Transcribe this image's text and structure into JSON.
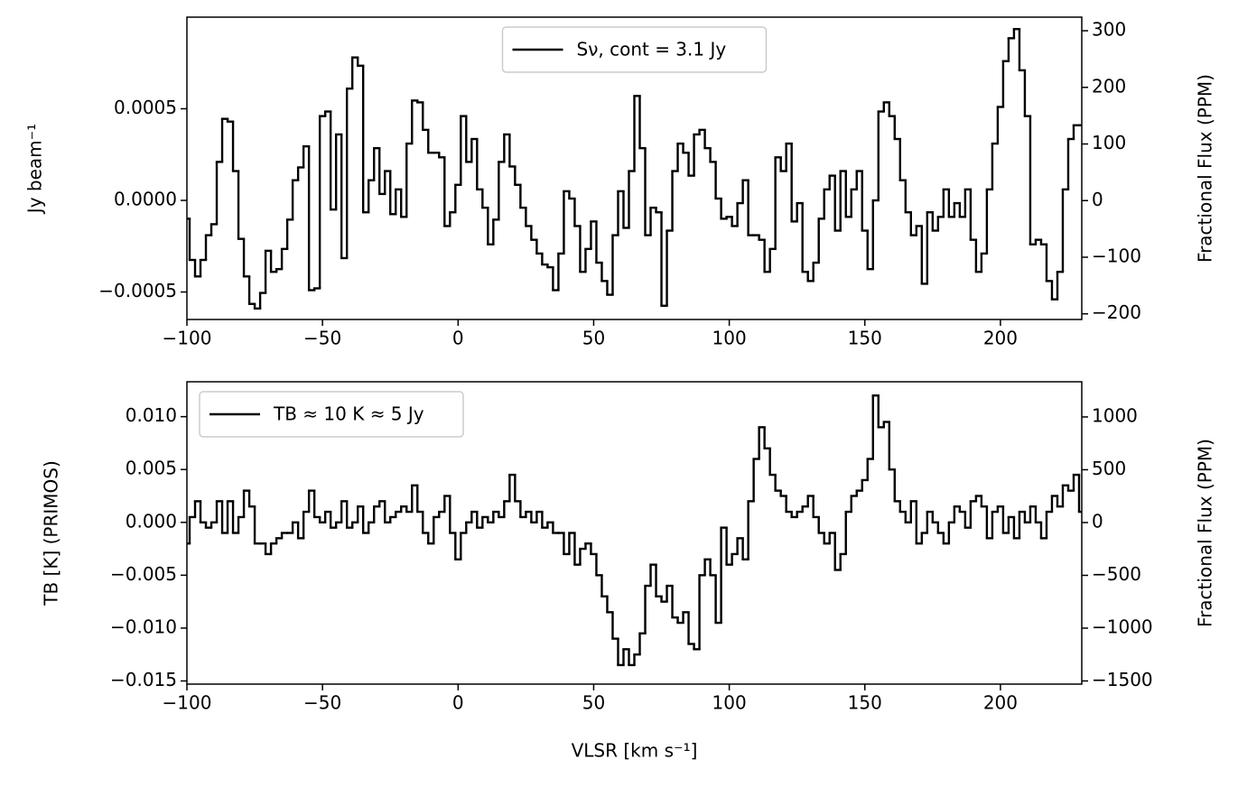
{
  "chart_data": [
    {
      "type": "line",
      "drawstyle": "steps-mid",
      "legend": "upper center",
      "ylabel": "Jy beam⁻¹",
      "y2label": "Fractional Flux (PPM)",
      "xlim": [
        -100,
        230
      ],
      "ylim": [
        -0.00065,
        0.001
      ],
      "y2lim": [
        -210,
        324
      ],
      "xticks": [
        {
          "value": -100,
          "label": "−100"
        },
        {
          "value": -50,
          "label": "−50"
        },
        0,
        50,
        100,
        150,
        200
      ],
      "yticks": [
        {
          "value": -0.0005,
          "label": "−0.0005"
        },
        {
          "value": 0,
          "label": "0.0000"
        },
        {
          "value": 0.0005,
          "label": "0.0005"
        }
      ],
      "y2ticks": [
        {
          "value": -200,
          "label": "−200"
        },
        {
          "value": -100,
          "label": "−100"
        },
        0,
        100,
        200,
        300
      ],
      "x": [
        -100,
        -98,
        -96,
        -94,
        -92,
        -90,
        -88,
        -86,
        -84,
        -82,
        -80,
        -78,
        -76,
        -74,
        -72,
        -70,
        -68,
        -66,
        -64,
        -62,
        -60,
        -58,
        -56,
        -54,
        -52,
        -50,
        -48,
        -46,
        -44,
        -42,
        -40,
        -38,
        -36,
        -34,
        -32,
        -30,
        -28,
        -26,
        -24,
        -22,
        -20,
        -18,
        -16,
        -14,
        -12,
        -10,
        -8,
        -6,
        -4,
        -2,
        0,
        2,
        4,
        6,
        8,
        10,
        12,
        14,
        16,
        18,
        20,
        22,
        24,
        26,
        28,
        30,
        32,
        34,
        36,
        38,
        40,
        42,
        44,
        46,
        48,
        50,
        52,
        54,
        56,
        58,
        60,
        62,
        64,
        66,
        68,
        70,
        72,
        74,
        76,
        78,
        80,
        82,
        84,
        86,
        88,
        90,
        92,
        94,
        96,
        98,
        100,
        102,
        104,
        106,
        108,
        110,
        112,
        114,
        116,
        118,
        120,
        122,
        124,
        126,
        128,
        130,
        132,
        134,
        136,
        138,
        140,
        142,
        144,
        146,
        148,
        150,
        152,
        154,
        156,
        158,
        160,
        162,
        164,
        166,
        168,
        170,
        172,
        174,
        176,
        178,
        180,
        182,
        184,
        186,
        188,
        190,
        192,
        194,
        196,
        198,
        200,
        202,
        204,
        206,
        208,
        210,
        212,
        214,
        216,
        218,
        220,
        222,
        224,
        226,
        228,
        230
      ],
      "series": [
        {
          "name": "Sν, cont = 3.1 Jy",
          "color": "#000000",
          "values": [
            -0.0001,
            -0.000325,
            -0.000415,
            -0.000325,
            -0.00019,
            -0.00013,
            0.00021,
            0.000445,
            0.00043,
            0.00016,
            -0.00021,
            -0.000415,
            -0.000565,
            -0.00059,
            -0.000505,
            -0.000275,
            -0.00039,
            -0.000375,
            -0.000265,
            -0.000105,
            0.00011,
            0.00018,
            0.000295,
            -0.00049,
            -0.00048,
            0.00046,
            0.000485,
            -5e-05,
            0.00036,
            -0.000315,
            0.00061,
            0.00078,
            0.000735,
            -6.5e-05,
            0.00011,
            0.000285,
            3.5e-05,
            0.00016,
            -7.5e-05,
            6e-05,
            -9e-05,
            0.00031,
            0.000545,
            0.000535,
            0.000385,
            0.00026,
            0.00026,
            0.000235,
            -0.00014,
            -6.5e-05,
            8.5e-05,
            0.00046,
            0.00021,
            0.000335,
            6e-05,
            -4e-05,
            -0.00024,
            -0.000105,
            0.00021,
            0.00036,
            0.000185,
            8.5e-05,
            -4e-05,
            -0.00014,
            -0.000215,
            -0.00029,
            -0.00035,
            -0.000365,
            -0.00049,
            -0.00029,
            5e-05,
            1e-05,
            -0.00014,
            -0.00039,
            -0.000265,
            -0.000115,
            -0.00034,
            -0.00044,
            -0.000515,
            -0.00019,
            5e-05,
            -0.00015,
            0.00016,
            0.00057,
            0.000285,
            -0.00019,
            -4e-05,
            -6.5e-05,
            -0.000575,
            -0.000165,
            0.00016,
            0.00031,
            0.00026,
            0.000135,
            0.00036,
            0.000385,
            0.000285,
            0.00021,
            1e-05,
            -0.0001,
            -9e-05,
            -0.00014,
            -1.5e-05,
            0.00011,
            -0.00019,
            -0.00019,
            -0.000215,
            -0.00039,
            -0.000265,
            0.000235,
            0.00016,
            0.00031,
            -0.000115,
            -1.5e-05,
            -0.00039,
            -0.00044,
            -0.00034,
            -0.0001,
            6e-05,
            0.000135,
            -0.000165,
            0.00016,
            -9e-05,
            6e-05,
            0.00016,
            -0.000165,
            -0.000375,
            0,
            0.000485,
            0.000535,
            0.00046,
            0.000335,
            0.00011,
            -6.5e-05,
            -0.00019,
            -0.00014,
            -0.000455,
            -6.5e-05,
            -0.000165,
            -9e-05,
            6e-05,
            -9e-05,
            -1.5e-05,
            -9e-05,
            6e-05,
            -0.000215,
            -0.00039,
            -0.00029,
            6e-05,
            0.00031,
            0.00051,
            0.00076,
            0.000885,
            0.000935,
            0.00071,
            0.00046,
            -0.00024,
            -0.000215,
            -0.00024,
            -0.00044,
            -0.00054,
            -0.00039,
            6e-05,
            0.000335,
            0.00041,
            0.00041
          ]
        }
      ]
    },
    {
      "type": "line",
      "drawstyle": "steps-mid",
      "legend": "upper left",
      "xlabel": "VLSR [km s⁻¹]",
      "ylabel": "TB [K] (PRIMOS)",
      "y2label": "Fractional Flux (PPM)",
      "xlim": [
        -100,
        230
      ],
      "ylim": [
        -0.0153,
        0.0133
      ],
      "y2lim": [
        -1530,
        1333
      ],
      "xticks": [
        {
          "value": -100,
          "label": "−100"
        },
        {
          "value": -50,
          "label": "−50"
        },
        0,
        50,
        100,
        150,
        200
      ],
      "yticks": [
        {
          "value": -0.015,
          "label": "−0.015"
        },
        {
          "value": -0.01,
          "label": "−0.010"
        },
        {
          "value": -0.005,
          "label": "−0.005"
        },
        {
          "value": 0,
          "label": "0.000"
        },
        {
          "value": 0.005,
          "label": "0.005"
        },
        {
          "value": 0.01,
          "label": "0.010"
        }
      ],
      "y2ticks": [
        {
          "value": -1500,
          "label": "−1500"
        },
        {
          "value": -1000,
          "label": "−1000"
        },
        {
          "value": -500,
          "label": "−500"
        },
        0,
        500,
        1000
      ],
      "x": [
        -100,
        -98,
        -96,
        -94,
        -92,
        -90,
        -88,
        -86,
        -84,
        -82,
        -80,
        -78,
        -76,
        -74,
        -72,
        -70,
        -68,
        -66,
        -64,
        -62,
        -60,
        -58,
        -56,
        -54,
        -52,
        -50,
        -48,
        -46,
        -44,
        -42,
        -40,
        -38,
        -36,
        -34,
        -32,
        -30,
        -28,
        -26,
        -24,
        -22,
        -20,
        -18,
        -16,
        -14,
        -12,
        -10,
        -8,
        -6,
        -4,
        -2,
        0,
        2,
        4,
        6,
        8,
        10,
        12,
        14,
        16,
        18,
        20,
        22,
        24,
        26,
        28,
        30,
        32,
        34,
        36,
        38,
        40,
        42,
        44,
        46,
        48,
        50,
        52,
        54,
        56,
        58,
        60,
        62,
        64,
        66,
        68,
        70,
        72,
        74,
        76,
        78,
        80,
        82,
        84,
        86,
        88,
        90,
        92,
        94,
        96,
        98,
        100,
        102,
        104,
        106,
        108,
        110,
        112,
        114,
        116,
        118,
        120,
        122,
        124,
        126,
        128,
        130,
        132,
        134,
        136,
        138,
        140,
        142,
        144,
        146,
        148,
        150,
        152,
        154,
        156,
        158,
        160,
        162,
        164,
        166,
        168,
        170,
        172,
        174,
        176,
        178,
        180,
        182,
        184,
        186,
        188,
        190,
        192,
        194,
        196,
        198,
        200,
        202,
        204,
        206,
        208,
        210,
        212,
        214,
        216,
        218,
        220,
        222,
        224,
        226,
        228,
        230
      ],
      "series": [
        {
          "name": "TB ≈ 10 K  ≈  5 Jy",
          "color": "#000000",
          "values": [
            -0.002,
            0.0005,
            0.002,
            0,
            -0.0005,
            0,
            0.002,
            -0.001,
            0.002,
            -0.001,
            0.0005,
            0.003,
            0.0015,
            -0.002,
            -0.002,
            -0.003,
            -0.002,
            -0.0015,
            -0.001,
            -0.001,
            0,
            -0.0015,
            0.001,
            0.003,
            0.0005,
            0,
            0.001,
            -0.0005,
            0,
            0.002,
            -0.0005,
            0,
            0.0015,
            -0.001,
            0,
            0.0015,
            0.002,
            0,
            0.0005,
            0.001,
            0.0015,
            0.001,
            0.0035,
            0.001,
            -0.001,
            -0.002,
            0.0005,
            0.001,
            0.0025,
            -0.001,
            -0.0035,
            -0.001,
            0,
            0.001,
            -0.0005,
            0.0005,
            0,
            0.001,
            0.0005,
            0.002,
            0.0045,
            0.002,
            0.0005,
            0.001,
            0,
            0.001,
            -0.0005,
            0,
            -0.001,
            -0.001,
            -0.003,
            -0.001,
            -0.004,
            -0.0025,
            -0.002,
            -0.003,
            -0.005,
            -0.007,
            -0.0085,
            -0.011,
            -0.0135,
            -0.012,
            -0.0135,
            -0.0125,
            -0.0105,
            -0.006,
            -0.004,
            -0.007,
            -0.0075,
            -0.006,
            -0.009,
            -0.0095,
            -0.0085,
            -0.0115,
            -0.012,
            -0.005,
            -0.0035,
            -0.005,
            -0.0095,
            -0.0005,
            -0.004,
            -0.003,
            -0.0015,
            -0.0035,
            0.002,
            0.006,
            0.009,
            0.007,
            0.0045,
            0.003,
            0.0025,
            0.001,
            0.0005,
            0.001,
            0.0015,
            0.0025,
            0.0005,
            -0.001,
            -0.002,
            -0.001,
            -0.0045,
            -0.003,
            0.001,
            0.0025,
            0.003,
            0.004,
            0.006,
            0.012,
            0.009,
            0.0095,
            0.005,
            0.002,
            0.001,
            0,
            0.002,
            -0.002,
            -0.001,
            0.001,
            0,
            -0.001,
            -0.002,
            0,
            0.0015,
            0.001,
            -0.0005,
            0.002,
            0.0025,
            0.0015,
            -0.0015,
            0.001,
            0.0015,
            -0.001,
            0.0005,
            -0.0015,
            0.001,
            0,
            0.0015,
            0,
            -0.0015,
            0.001,
            0.0025,
            0.0015,
            0.0035,
            0.003,
            0.0045,
            0.001
          ]
        }
      ]
    }
  ]
}
